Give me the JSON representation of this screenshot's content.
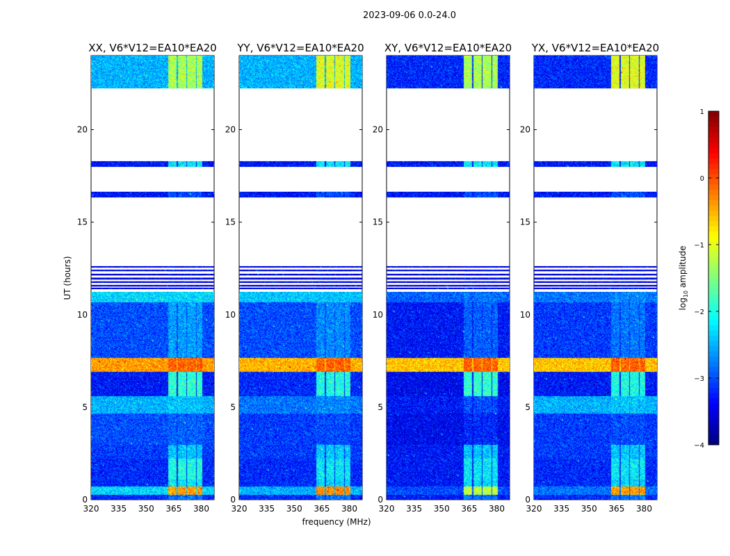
{
  "chart_data": {
    "type": "heatmap",
    "title": "2023-09-06 0.0-24.0",
    "xlabel": "frequency (MHz)",
    "ylabel": "UT (hours)",
    "xlim": [
      320,
      387
    ],
    "ylim": [
      0,
      24
    ],
    "xticks": [
      "320",
      "335",
      "350",
      "365",
      "380"
    ],
    "yticks": [
      "0",
      "5",
      "10",
      "15",
      "20"
    ],
    "colorbar": {
      "label_prefix": "log",
      "label_sub": "10",
      "label_suffix": " amplitude",
      "range": [
        -4,
        1
      ],
      "ticks": [
        "1",
        "0",
        "−1",
        "−2",
        "−3",
        "−4"
      ],
      "colormap": "jet"
    },
    "panels": [
      {
        "title": "XX, V6*V12=EA10*EA20"
      },
      {
        "title": "YY, V6*V12=EA10*EA20"
      },
      {
        "title": "XY, V6*V12=EA10*EA20"
      },
      {
        "title": "YX, V6*V12=EA10*EA20"
      }
    ],
    "rfi_channels_mhz": [
      [
        362,
        366.6
      ],
      [
        367.2,
        371.8
      ],
      [
        372.4,
        377
      ],
      [
        377.6,
        380.6
      ]
    ],
    "segments": [
      {
        "t": [
          22.23,
          24.0
        ],
        "base": [
          -2.5,
          -2.5,
          -3.2,
          -3.2
        ],
        "rfi": [
          -1.3,
          -1.0,
          -1.3,
          -1.0
        ]
      },
      {
        "t": [
          17.99,
          18.29
        ],
        "base": [
          -3.3,
          -3.3,
          -3.3,
          -3.3
        ],
        "rfi": [
          -2.2,
          -2.2,
          -2.2,
          -2.2
        ]
      },
      {
        "t": [
          16.34,
          16.64
        ],
        "base": [
          -3.3,
          -3.3,
          -3.3,
          -3.3
        ],
        "rfi": [
          -3.0,
          -3.0,
          -3.0,
          -3.0
        ]
      },
      {
        "t": [
          12.55,
          12.62
        ],
        "base": [
          -3.5,
          -3.5,
          -3.5,
          -3.5
        ],
        "rfi": [
          -3.4,
          -3.4,
          -3.4,
          -3.4
        ]
      },
      {
        "t": [
          12.35,
          12.42
        ],
        "base": [
          -3.5,
          -3.5,
          -3.5,
          -3.5
        ],
        "rfi": [
          -3.4,
          -3.4,
          -3.4,
          -3.4
        ]
      },
      {
        "t": [
          12.12,
          12.2
        ],
        "base": [
          -3.5,
          -3.5,
          -3.5,
          -3.5
        ],
        "rfi": [
          -3.4,
          -3.4,
          -3.4,
          -3.4
        ]
      },
      {
        "t": [
          11.9,
          12.0
        ],
        "base": [
          -3.5,
          -3.5,
          -3.5,
          -3.5
        ],
        "rfi": [
          -3.4,
          -3.4,
          -3.4,
          -3.4
        ]
      },
      {
        "t": [
          11.72,
          11.8
        ],
        "base": [
          -3.5,
          -3.5,
          -3.5,
          -3.5
        ],
        "rfi": [
          -3.4,
          -3.4,
          -3.4,
          -3.4
        ]
      },
      {
        "t": [
          11.52,
          11.6
        ],
        "base": [
          -3.5,
          -3.5,
          -3.5,
          -3.5
        ],
        "rfi": [
          -3.4,
          -3.4,
          -3.4,
          -3.4
        ]
      },
      {
        "t": [
          11.38,
          11.45
        ],
        "base": [
          -3.5,
          -3.5,
          -3.5,
          -3.5
        ],
        "rfi": [
          -3.4,
          -3.4,
          -3.4,
          -3.4
        ]
      },
      {
        "t": [
          10.67,
          11.23
        ],
        "base": [
          -2.3,
          -2.4,
          -2.9,
          -2.8
        ],
        "rfi": [
          -2.3,
          -2.4,
          -2.8,
          -2.7
        ]
      },
      {
        "t": [
          7.66,
          10.67
        ],
        "base": [
          -3.0,
          -3.0,
          -3.3,
          -3.1
        ],
        "rfi": [
          -2.6,
          -2.7,
          -2.9,
          -2.8
        ]
      },
      {
        "t": [
          6.91,
          7.66
        ],
        "base": [
          -0.4,
          -0.5,
          -0.6,
          -0.6
        ],
        "rfi": [
          -0.1,
          -0.1,
          -0.1,
          -0.1
        ]
      },
      {
        "t": [
          5.6,
          6.91
        ],
        "base": [
          -3.3,
          -3.2,
          -3.4,
          -3.3
        ],
        "rfi": [
          -1.9,
          -2.0,
          -1.9,
          -2.0
        ]
      },
      {
        "t": [
          4.66,
          5.6
        ],
        "base": [
          -2.5,
          -2.8,
          -3.3,
          -2.5
        ],
        "rfi": [
          -2.4,
          -2.7,
          -3.0,
          -2.4
        ]
      },
      {
        "t": [
          2.97,
          4.66
        ],
        "base": [
          -3.0,
          -3.1,
          -3.4,
          -3.1
        ],
        "rfi": [
          -2.9,
          -3.0,
          -3.2,
          -3.0
        ]
      },
      {
        "t": [
          2.22,
          2.97
        ],
        "base": [
          -3.1,
          -3.1,
          -3.3,
          -3.1
        ],
        "rfi": [
          -2.4,
          -2.4,
          -2.4,
          -2.4
        ]
      },
      {
        "t": [
          1.09,
          2.22
        ],
        "base": [
          -3.2,
          -3.2,
          -3.3,
          -3.2
        ],
        "rfi": [
          -2.0,
          -2.2,
          -2.2,
          -2.2
        ]
      },
      {
        "t": [
          0.71,
          1.09
        ],
        "base": [
          -3.2,
          -3.2,
          -3.3,
          -3.2
        ],
        "rfi": [
          -2.2,
          -2.3,
          -2.3,
          -2.3
        ]
      },
      {
        "t": [
          0.26,
          0.71
        ],
        "base": [
          -2.3,
          -2.5,
          -3.0,
          -2.8
        ],
        "rfi": [
          -0.4,
          -0.3,
          -1.2,
          -0.4
        ]
      },
      {
        "t": [
          0.0,
          0.26
        ],
        "base": [
          -3.2,
          -3.2,
          -3.3,
          -3.2
        ],
        "rfi": [
          -2.8,
          -2.8,
          -2.8,
          -2.8
        ]
      }
    ],
    "flagged_white_hours": [
      23.35,
      23.05,
      9.6,
      8.8,
      8.1,
      5.1,
      3.4,
      2.5,
      1.5,
      0.5
    ],
    "dark_line_hours": [
      10.6,
      10.0,
      9.3,
      7.67,
      6.9,
      6.5,
      4.6,
      4.4,
      3.9,
      2.9,
      2.3,
      2.0,
      1.1,
      0.25
    ]
  }
}
